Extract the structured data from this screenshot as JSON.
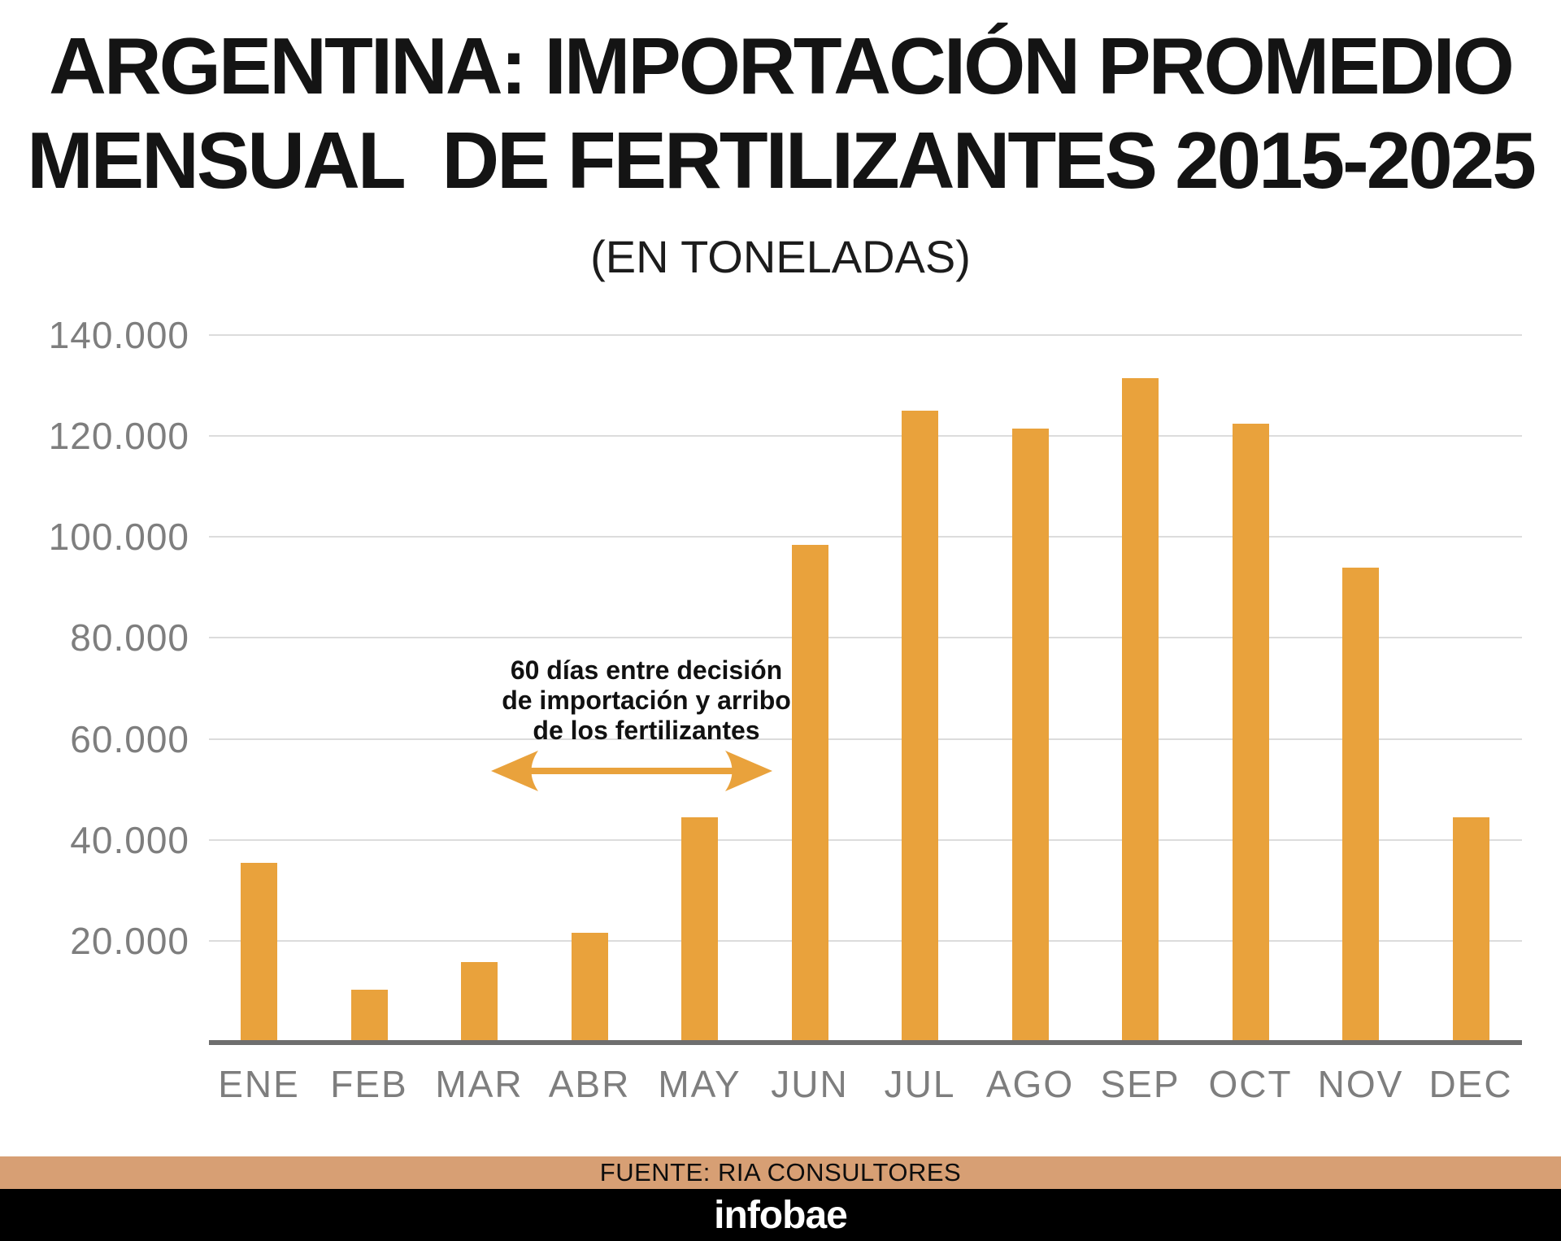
{
  "header": {
    "title_line1": "ARGENTINA: IMPORTACIÓN PROMEDIO",
    "title_line2": "MENSUAL  DE FERTILIZANTES 2015-2025",
    "subtitle": "(EN TONELADAS)"
  },
  "chart_data": {
    "type": "bar",
    "title": "ARGENTINA: IMPORTACIÓN PROMEDIO MENSUAL DE FERTILIZANTES 2015-2025",
    "subtitle": "(EN TONELADAS)",
    "unit": "toneladas",
    "categories": [
      "ENE",
      "FEB",
      "MAR",
      "ABR",
      "MAY",
      "JUN",
      "JUL",
      "AGO",
      "SEP",
      "OCT",
      "NOV",
      "DEC"
    ],
    "values": [
      35500,
      10300,
      15800,
      21600,
      44400,
      98500,
      125000,
      121500,
      131500,
      122500,
      94000,
      44400
    ],
    "ylim": [
      0,
      140000
    ],
    "yticks": [
      {
        "label": "140.000",
        "value": 140000
      },
      {
        "label": "120.000",
        "value": 120000
      },
      {
        "label": "100.000",
        "value": 100000
      },
      {
        "label": "80.000",
        "value": 80000
      },
      {
        "label": "60.000",
        "value": 60000
      },
      {
        "label": "40.000",
        "value": 40000
      },
      {
        "label": "20.000",
        "value": 20000
      }
    ],
    "grid": true,
    "legend": "none",
    "bar_color": "#E9A23C",
    "axis_color": "#6E6E6E",
    "gridline_color": "#DCDCDC",
    "tick_label_color": "#7E7E7E",
    "annotation": {
      "text": "60 días entre decisión\nde importación y arribo\nde los fertilizantes",
      "arrow": "double-headed horizontal, spans from between MAR and ABR to left of JUN bar"
    }
  },
  "footer": {
    "source": "FUENTE: RIA CONSULTORES",
    "source_band_color": "#D79F74",
    "brand": "infobae",
    "brand_band_color": "#000000"
  }
}
